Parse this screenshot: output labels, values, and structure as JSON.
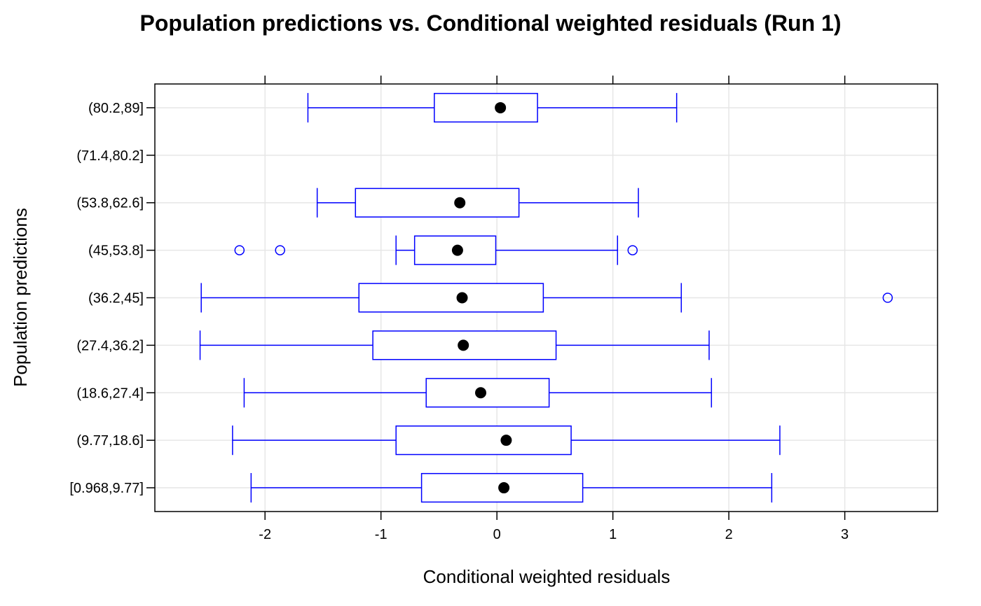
{
  "chart_data": {
    "type": "boxplot",
    "orientation": "horizontal",
    "title": "Population predictions vs. Conditional weighted residuals (Run 1)",
    "xlabel": "Conditional weighted residuals",
    "ylabel": "Population predictions",
    "xlim": [
      -2.95,
      3.8
    ],
    "x_ticks": [
      -2,
      -1,
      0,
      1,
      2,
      3
    ],
    "x_tick_labels": [
      "-2",
      "-1",
      "0",
      "1",
      "2",
      "3"
    ],
    "grid": true,
    "colors": {
      "box": "#0000ff",
      "median": "#000000",
      "grid": "#e6e6e6",
      "frame": "#000000"
    },
    "categories": [
      "[0.968,9.77]",
      "(9.77,18.6]",
      "(18.6,27.4]",
      "(27.4,36.2]",
      "(36.2,45]",
      "(45,53.8]",
      "(53.8,62.6]",
      "(71.4,80.2]",
      "(80.2,89]"
    ],
    "boxes": [
      {
        "category": "[0.968,9.77]",
        "whisker_low": -2.12,
        "q1": -0.65,
        "median": 0.06,
        "q3": 0.74,
        "whisker_high": 2.37,
        "outliers": []
      },
      {
        "category": "(9.77,18.6]",
        "whisker_low": -2.28,
        "q1": -0.87,
        "median": 0.08,
        "q3": 0.64,
        "whisker_high": 2.44,
        "outliers": []
      },
      {
        "category": "(18.6,27.4]",
        "whisker_low": -2.18,
        "q1": -0.61,
        "median": -0.14,
        "q3": 0.45,
        "whisker_high": 1.85,
        "outliers": []
      },
      {
        "category": "(27.4,36.2]",
        "whisker_low": -2.56,
        "q1": -1.07,
        "median": -0.29,
        "q3": 0.51,
        "whisker_high": 1.83,
        "outliers": []
      },
      {
        "category": "(36.2,45]",
        "whisker_low": -2.55,
        "q1": -1.19,
        "median": -0.3,
        "q3": 0.4,
        "whisker_high": 1.59,
        "outliers": [
          3.37
        ]
      },
      {
        "category": "(45,53.8]",
        "whisker_low": -0.87,
        "q1": -0.71,
        "median": -0.34,
        "q3": -0.01,
        "whisker_high": 1.04,
        "outliers": [
          -2.22,
          -1.87,
          1.17
        ]
      },
      {
        "category": "(53.8,62.6]",
        "whisker_low": -1.55,
        "q1": -1.22,
        "median": -0.32,
        "q3": 0.19,
        "whisker_high": 1.22,
        "outliers": []
      },
      {
        "category": "(71.4,80.2]",
        "whisker_low": null,
        "q1": null,
        "median": null,
        "q3": null,
        "whisker_high": null,
        "outliers": []
      },
      {
        "category": "(80.2,89]",
        "whisker_low": -1.63,
        "q1": -0.54,
        "median": 0.03,
        "q3": 0.35,
        "whisker_high": 1.55,
        "outliers": []
      }
    ]
  }
}
